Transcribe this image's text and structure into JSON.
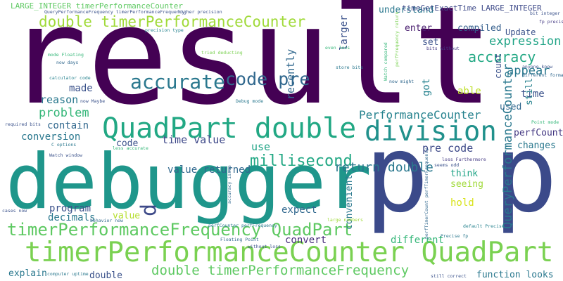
{
  "words": [
    {
      "text": "result",
      "color": "#440154"
    },
    {
      "text": "debugger",
      "color": "#1f968b"
    },
    {
      "text": "p p",
      "color": "#3b4a8a"
    },
    {
      "text": "QuadPart double",
      "color": "#22a884"
    },
    {
      "text": "division",
      "color": "#21918c"
    },
    {
      "text": "timerPerformanceCounter QuadPart",
      "color": "#7ad151"
    },
    {
      "text": "timerPerformanceFrequency QuadPart",
      "color": "#5ec962"
    },
    {
      "text": "double timerPerformanceCounter",
      "color": "#a0da39"
    },
    {
      "text": "double timerPerformanceFrequency",
      "color": "#5ec962"
    },
    {
      "text": "accurate",
      "color": "#2a788e"
    },
    {
      "text": "code pre",
      "color": "#31688e"
    },
    {
      "text": "millisecond",
      "color": "#22a884"
    },
    {
      "text": "return double",
      "color": "#2a788e"
    },
    {
      "text": "PerformanceCounter",
      "color": "#26828e"
    },
    {
      "text": "accuracy",
      "color": "#22a884"
    },
    {
      "text": "expression",
      "color": "#20a486"
    },
    {
      "text": "appear",
      "color": "#2a788e"
    },
    {
      "text": "QueryPerformanceCounter",
      "color": "#2a788e"
    },
    {
      "text": "recently",
      "color": "#31688e"
    },
    {
      "text": "larger",
      "color": "#3b528b"
    },
    {
      "text": "problem",
      "color": "#35b779"
    },
    {
      "text": "reason",
      "color": "#2a788e"
    },
    {
      "text": "made",
      "color": "#3b528b"
    },
    {
      "text": "conversion",
      "color": "#2a788e"
    },
    {
      "text": "contain",
      "color": "#31688e"
    },
    {
      "text": "time value",
      "color": "#3e4989"
    },
    {
      "text": "code",
      "color": "#3b528b"
    },
    {
      "text": "use",
      "color": "#20a486"
    },
    {
      "text": "value returned",
      "color": "#31688e"
    },
    {
      "text": "pre code",
      "color": "#3e4a89"
    },
    {
      "text": "got",
      "color": "#26828e"
    },
    {
      "text": "able",
      "color": "#bddf26"
    },
    {
      "text": "time",
      "color": "#3b528b"
    },
    {
      "text": "used",
      "color": "#31688e"
    },
    {
      "text": "perfCounter",
      "color": "#443983"
    },
    {
      "text": "changes",
      "color": "#2a788e"
    },
    {
      "text": "think",
      "color": "#20a486"
    },
    {
      "text": "seeing",
      "color": "#a0da39"
    },
    {
      "text": "hold",
      "color": "#d8e219"
    },
    {
      "text": "convenient",
      "color": "#2a788e"
    },
    {
      "text": "expect",
      "color": "#31688e"
    },
    {
      "text": "convert",
      "color": "#472d7b"
    },
    {
      "text": "different",
      "color": "#35b779"
    },
    {
      "text": "program",
      "color": "#3b528b"
    },
    {
      "text": "decimals",
      "color": "#2a788e"
    },
    {
      "text": "value",
      "color": "#b5de2b"
    },
    {
      "text": "p",
      "color": "#3e4a89"
    },
    {
      "text": "explain",
      "color": "#2a788e"
    },
    {
      "text": "double",
      "color": "#3b528b"
    },
    {
      "text": "function looks",
      "color": "#2a788e"
    },
    {
      "text": "understand",
      "color": "#2a788e"
    },
    {
      "text": "enter",
      "color": "#481c6e"
    },
    {
      "text": "set",
      "color": "#3b528b"
    },
    {
      "text": "compiled",
      "color": "#355f8d"
    },
    {
      "text": "Update",
      "color": "#3b528b"
    },
    {
      "text": "timeGetExactTime LARGE_INTEGER",
      "color": "#3e4a89"
    },
    {
      "text": "LARGE_INTEGER timerPerformanceCounter",
      "color": "#5ec962"
    },
    {
      "text": "QueryPerformanceFrequency timerPerformanceFrequency",
      "color": "#3b528b"
    },
    {
      "text": "higher precision",
      "color": "#3b528b"
    },
    {
      "text": "precision type",
      "color": "#26828e"
    },
    {
      "text": "mode Floating",
      "color": "#35b779"
    },
    {
      "text": "now days",
      "color": "#31688e"
    },
    {
      "text": "calculator code",
      "color": "#26828e"
    },
    {
      "text": "now Maybe",
      "color": "#3b528b"
    },
    {
      "text": "Debug mode",
      "color": "#2a788e"
    },
    {
      "text": "tried deducting",
      "color": "#7ad151"
    },
    {
      "text": "even loss",
      "color": "#35b779"
    },
    {
      "text": "store bits",
      "color": "#2a788e"
    },
    {
      "text": "now might",
      "color": "#31688e"
    },
    {
      "text": "bits without",
      "color": "#443983"
    },
    {
      "text": "anyone know",
      "color": "#3b528b"
    },
    {
      "text": "different format",
      "color": "#31688e"
    },
    {
      "text": "bit integer",
      "color": "#3b528b"
    },
    {
      "text": "fp precise",
      "color": "#443983"
    },
    {
      "text": "required bits",
      "color": "#3b528b"
    },
    {
      "text": "C options",
      "color": "#2a788e"
    },
    {
      "text": "Watch window",
      "color": "#3b528b"
    },
    {
      "text": "less accurate",
      "color": "#35b779"
    },
    {
      "text": "accuracy issue",
      "color": "#31688e"
    },
    {
      "text": "cases now",
      "color": "#3b528b"
    },
    {
      "text": "behavior now",
      "color": "#31688e"
    },
    {
      "text": "computer uptime",
      "color": "#2a788e"
    },
    {
      "text": "perfCounter perfFrequency",
      "color": "#2a788e"
    },
    {
      "text": "without loss",
      "color": "#3b528b"
    },
    {
      "text": "Floating Point",
      "color": "#31688e"
    },
    {
      "text": "large numbers",
      "color": "#a0da39"
    },
    {
      "text": "Point mode",
      "color": "#35b779"
    },
    {
      "text": "loss Furthermore",
      "color": "#443983"
    },
    {
      "text": "seems odd",
      "color": "#3b528b"
    },
    {
      "text": "default Precise",
      "color": "#26828e"
    },
    {
      "text": "Precise fp",
      "color": "#2a788e"
    },
    {
      "text": "still correct",
      "color": "#3b528b"
    },
    {
      "text": "perfTimerCount perfTimerFrequency",
      "color": "#31688e"
    },
    {
      "text": "Watch compared",
      "color": "#35b779"
    },
    {
      "text": "perfFrequency return",
      "color": "#7ad151"
    },
    {
      "text": "count",
      "color": "#3b528b"
    },
    {
      "text": "still",
      "color": "#26828e"
    }
  ]
}
